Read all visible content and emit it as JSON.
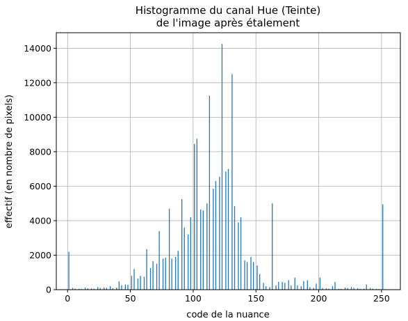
{
  "chart_data": {
    "type": "bar",
    "title": [
      "Histogramme du canal Hue (Teinte)",
      "de l'image après étalement"
    ],
    "xlabel": "code de la nuance",
    "ylabel": "effectif (en nombre de pixels)",
    "xlim": [
      -9,
      265
    ],
    "ylim": [
      0,
      14900
    ],
    "xticks": [
      0,
      50,
      100,
      150,
      200,
      250
    ],
    "yticks": [
      0,
      2000,
      4000,
      6000,
      8000,
      10000,
      12000,
      14000
    ],
    "grid": true,
    "bar_color": "#1f77b4",
    "x": [
      1,
      4,
      6,
      9,
      11,
      14,
      16,
      19,
      21,
      24,
      26,
      29,
      31,
      34,
      36,
      39,
      41,
      43,
      46,
      48,
      51,
      53,
      56,
      58,
      61,
      63,
      66,
      68,
      71,
      73,
      76,
      78,
      81,
      83,
      86,
      88,
      91,
      93,
      96,
      98,
      101,
      103,
      106,
      108,
      111,
      113,
      116,
      118,
      121,
      123,
      126,
      128,
      131,
      133,
      136,
      138,
      141,
      143,
      146,
      148,
      151,
      153,
      156,
      158,
      161,
      163,
      166,
      168,
      171,
      173,
      176,
      178,
      181,
      183,
      186,
      188,
      191,
      193,
      196,
      198,
      201,
      203,
      206,
      208,
      211,
      213,
      216,
      218,
      221,
      223,
      226,
      228,
      231,
      233,
      236,
      238,
      241,
      243,
      246,
      248,
      251,
      253
    ],
    "values": [
      2200,
      100,
      60,
      50,
      40,
      120,
      80,
      70,
      60,
      150,
      100,
      130,
      110,
      200,
      80,
      120,
      480,
      250,
      300,
      280,
      800,
      1200,
      650,
      800,
      750,
      2350,
      1250,
      1650,
      1500,
      3400,
      1800,
      1850,
      4700,
      1800,
      1900,
      2250,
      5250,
      3600,
      3200,
      4200,
      8450,
      8750,
      4650,
      4600,
      5000,
      11250,
      5850,
      6300,
      6550,
      14250,
      6850,
      7000,
      12500,
      4850,
      3900,
      4200,
      1700,
      1600,
      1900,
      1600,
      1400,
      900,
      400,
      200,
      150,
      5000,
      250,
      450,
      450,
      400,
      550,
      250,
      700,
      250,
      200,
      500,
      550,
      150,
      100,
      350,
      700,
      100,
      80,
      60,
      200,
      450,
      50,
      40,
      120,
      100,
      150,
      100,
      80,
      50,
      60,
      300,
      100,
      60,
      50,
      40,
      4950,
      30
    ]
  }
}
